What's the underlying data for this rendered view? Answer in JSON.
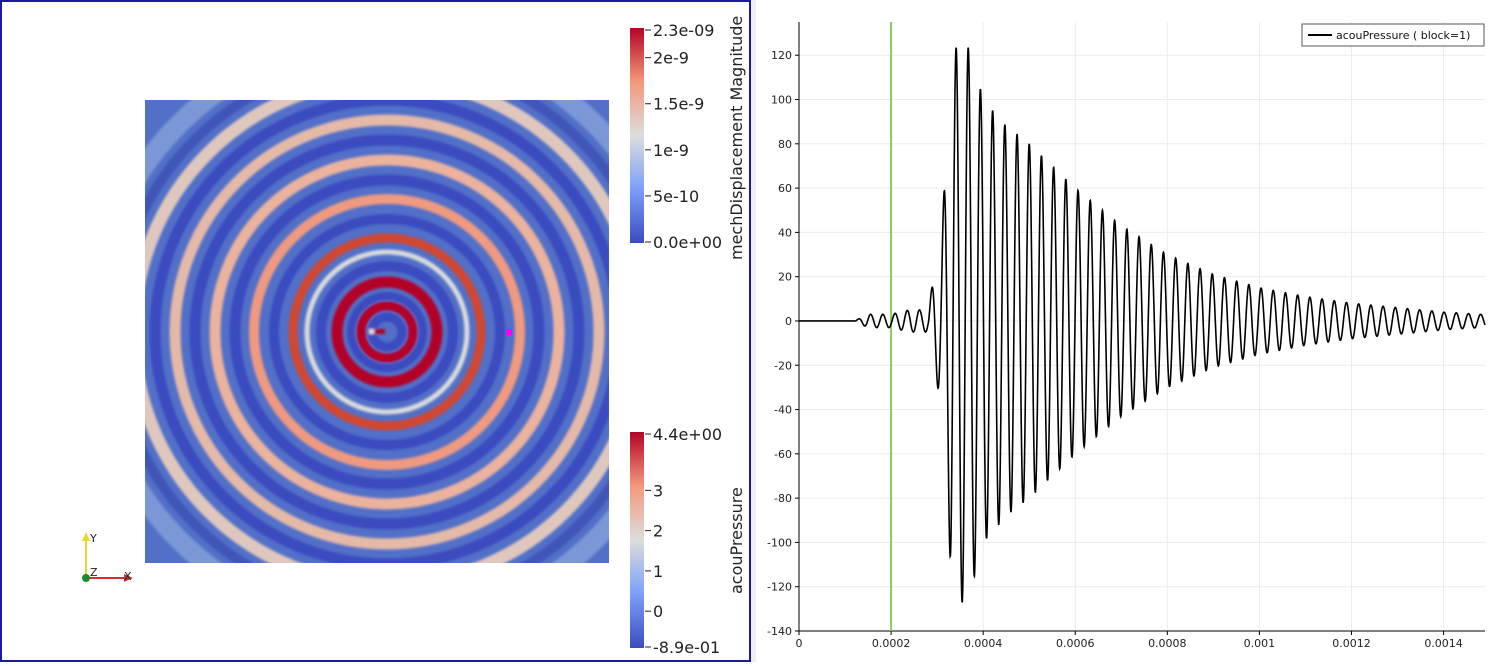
{
  "render_view": {
    "colorbar_displacement": {
      "title": "mechDisplacement Magnitude",
      "ticks": [
        "2.3e-09",
        "2e-9",
        "1.5e-9",
        "1e-9",
        "5e-10",
        "0.0e+00"
      ],
      "tick_values": [
        2.3e-09,
        2e-09,
        1.5e-09,
        1e-09,
        5e-10,
        0
      ]
    },
    "colorbar_pressure": {
      "title": "acouPressure",
      "ticks": [
        "4.4e+00",
        "3",
        "2",
        "1",
        "0",
        "-8.9e-01"
      ],
      "tick_values": [
        4.4,
        3,
        2,
        1,
        0,
        -0.89
      ]
    },
    "axes": {
      "x": "X",
      "y": "Y",
      "z": "Z"
    },
    "colors": {
      "low": "#3b4cc0",
      "mid": "#dddddd",
      "high": "#b40426",
      "probe": "#ff00ff",
      "frame": "#1a1aa0"
    }
  },
  "chart_data": {
    "type": "line",
    "series": [
      {
        "name": "acouPressure ( block=1)",
        "color": "#000000",
        "x": [
          0,
          0.00012,
          0.00015,
          0.00018,
          0.0002,
          0.00024,
          0.00028,
          0.00031,
          0.00033,
          0.000345,
          0.00036,
          0.000375,
          0.0004,
          0.00045,
          0.0005,
          0.0006,
          0.0007,
          0.0008,
          0.0009,
          0.001,
          0.0011,
          0.0012,
          0.0013,
          0.0014,
          0.00148
        ],
        "amplitude": [
          0,
          0,
          3,
          3,
          3,
          5,
          5,
          40,
          113,
          127,
          127,
          120,
          100,
          88,
          80,
          60,
          43,
          30,
          21,
          15,
          11,
          8,
          6,
          4,
          3
        ]
      }
    ],
    "markers": [
      {
        "type": "vertical_line",
        "x": 0.0002,
        "color": "#8cc860"
      }
    ],
    "xlim": [
      0,
      0.00149
    ],
    "ylim": [
      -140,
      135
    ],
    "x_ticks": [
      0,
      0.0002,
      0.0004,
      0.0006,
      0.0008,
      0.001,
      0.0012,
      0.0014
    ],
    "x_tick_labels": [
      "0",
      "0.0002",
      "0.0004",
      "0.0006",
      "0.0008",
      "0.001",
      "0.0012",
      "0.0014"
    ],
    "y_ticks": [
      120,
      100,
      80,
      60,
      40,
      20,
      0,
      -20,
      -40,
      -60,
      -80,
      -100,
      -120,
      -140
    ],
    "y_tick_labels": [
      "120",
      "100",
      "80",
      "60",
      "40",
      "20",
      "0",
      "-20",
      "-40",
      "-60",
      "-80",
      "-100",
      "-120",
      "-140"
    ],
    "grid": true,
    "legend_position": "top-right",
    "oscillation_period": 2.65e-05
  }
}
